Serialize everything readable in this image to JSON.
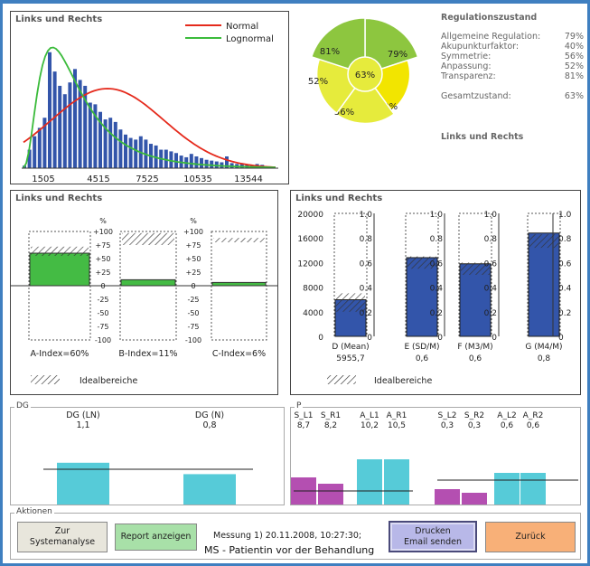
{
  "histogram": {
    "title": "Links und Rechts",
    "legend": [
      {
        "name": "Normal",
        "color": "#e52a1c"
      },
      {
        "name": "Lognormal",
        "color": "#3bbb3b"
      }
    ],
    "xticks": [
      "1505",
      "4515",
      "7525",
      "10535",
      "13544"
    ]
  },
  "pie": {
    "center_label": "63%",
    "segments": [
      {
        "label": "79%",
        "value": 79,
        "color": "#8dc63f"
      },
      {
        "label": "40%",
        "value": 40,
        "color": "#f2e500"
      },
      {
        "label": "56%",
        "value": 56,
        "color": "#e6eb3c"
      },
      {
        "label": "52%",
        "value": 52,
        "color": "#e6eb3c"
      },
      {
        "label": "81%",
        "value": 81,
        "color": "#8dc63f"
      }
    ]
  },
  "regulation": {
    "title": "Regulationszustand",
    "rows": [
      {
        "label": "Allgemeine Regulation:",
        "value": "79%"
      },
      {
        "label": "Akupunkturfaktor:",
        "value": "40%"
      },
      {
        "label": "Symmetrie:",
        "value": "56%"
      },
      {
        "label": "Anpassung:",
        "value": "52%"
      },
      {
        "label": "Transparenz:",
        "value": "81%"
      }
    ],
    "total_label": "Gesamtzustand:",
    "total_value": "63%",
    "footer": "Links und Rechts"
  },
  "index_panel": {
    "title": "Links und Rechts",
    "unit": "%",
    "scale": [
      "+100",
      "+75",
      "+50",
      "+25",
      "0",
      "-25",
      "-50",
      "-75",
      "-100"
    ],
    "bars": [
      {
        "label": "A-Index=60%",
        "value": 60
      },
      {
        "label": "B-Index=11%",
        "value": 11
      },
      {
        "label": "C-Index=6%",
        "value": 6
      }
    ],
    "ideal_label": "Idealbereiche"
  },
  "stats_panel": {
    "title": "Links und Rechts",
    "left_axis": [
      "20000",
      "16000",
      "12000",
      "8000",
      "4000",
      "0"
    ],
    "right_axis": [
      "1.0",
      "0.8",
      "0.6",
      "0.4",
      "0.2",
      "0"
    ],
    "bars": [
      {
        "label": "D (Mean)",
        "value_label": "5955,7",
        "value": 5955.7
      },
      {
        "label": "E (SD/M)",
        "value_label": "0,6",
        "value": 0.64
      },
      {
        "label": "F (M3/M)",
        "value_label": "0,6",
        "value": 0.59
      },
      {
        "label": "G (M4/M)",
        "value_label": "0,8",
        "value": 0.84
      }
    ],
    "ideal_label": "Idealbereiche"
  },
  "dg_panel": {
    "legend": "DG",
    "bars": [
      {
        "label": "DG (LN)",
        "value_label": "1,1",
        "value": 1.1
      },
      {
        "label": "DG (N)",
        "value_label": "0,8",
        "value": 0.8
      }
    ]
  },
  "p_panel": {
    "legend": "P",
    "bars": [
      {
        "label": "S_L1",
        "value_label": "8,7",
        "color": "#b44fb1"
      },
      {
        "label": "S_R1",
        "value_label": "8,2",
        "color": "#b44fb1"
      },
      {
        "label": "A_L1",
        "value_label": "10,2",
        "color": "#56cbd8"
      },
      {
        "label": "A_R1",
        "value_label": "10,5",
        "color": "#56cbd8"
      },
      {
        "label": "S_L2",
        "value_label": "0,3",
        "color": "#b44fb1"
      },
      {
        "label": "S_R2",
        "value_label": "0,3",
        "color": "#b44fb1"
      },
      {
        "label": "A_L2",
        "value_label": "0,6",
        "color": "#56cbd8"
      },
      {
        "label": "A_R2",
        "value_label": "0,6",
        "color": "#56cbd8"
      }
    ]
  },
  "actions": {
    "legend": "Aktionen",
    "btn_system": "Zur\nSystemanalyse",
    "btn_report": "Report anzeigen",
    "measurement": "Messung 1) 20.11.2008, 10:27:30;",
    "patient": "MS - Patientin vor der Behandlung",
    "btn_print": "Drucken\nEmail senden",
    "btn_back": "Zurück"
  },
  "colors": {
    "bar_blue": "#3355aa",
    "bar_green": "#44bb44",
    "cyan": "#56cbd8",
    "purple": "#b44fb1",
    "frame": "#3f7fc0"
  }
}
